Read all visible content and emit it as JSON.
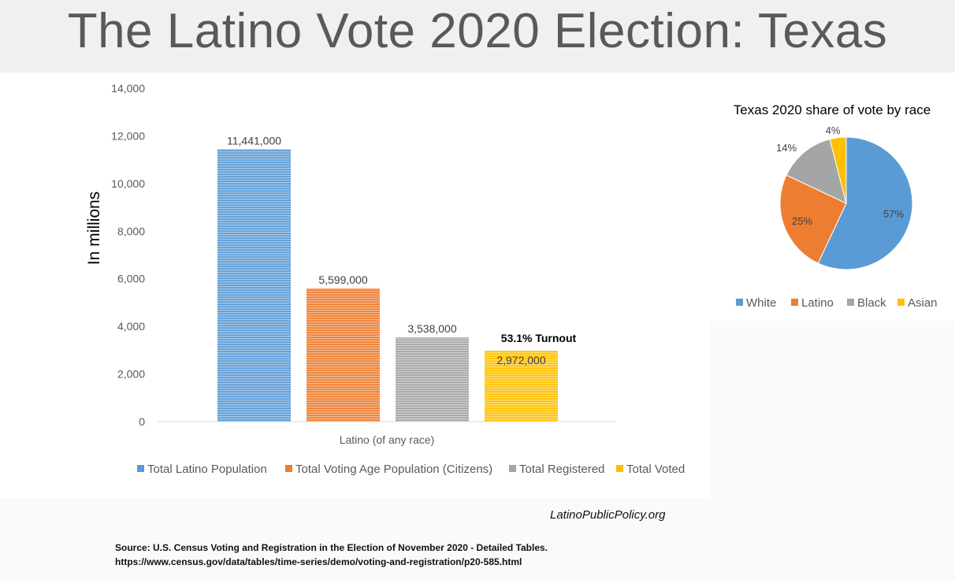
{
  "page_title": "The Latino Vote 2020 Election: Texas",
  "chart_data": [
    {
      "type": "bar",
      "title": "",
      "ylabel": "In millions",
      "xlabel": "",
      "categories": [
        "Latino (of any race)"
      ],
      "ylim": [
        0,
        14000
      ],
      "yticks": [
        0,
        2000,
        4000,
        6000,
        8000,
        10000,
        12000,
        14000
      ],
      "ytick_labels": [
        "0",
        "2,000",
        "4,000",
        "6,000",
        "8,000",
        "10,000",
        "12,000",
        "14,000"
      ],
      "grid": false,
      "legend_position": "bottom",
      "series": [
        {
          "name": "Total Latino Population",
          "values": [
            11441
          ],
          "label": "11,441,000",
          "color": "#5b9bd5"
        },
        {
          "name": "Total Voting Age Population (Citizens)",
          "values": [
            5599
          ],
          "label": "5,599,000",
          "color": "#ed7d31"
        },
        {
          "name": "Total Registered",
          "values": [
            3538
          ],
          "label": "3,538,000",
          "color": "#a5a5a5"
        },
        {
          "name": "Total Voted",
          "values": [
            2972
          ],
          "label": "2,972,000",
          "color": "#ffc000"
        }
      ],
      "annotations": [
        {
          "text": "53.1% Turnout",
          "series": "Total Voted"
        }
      ]
    },
    {
      "type": "pie",
      "title": "Texas 2020 share of vote by race",
      "legend_position": "bottom",
      "slices": [
        {
          "name": "White",
          "value": 57,
          "label": "57%",
          "color": "#5b9bd5"
        },
        {
          "name": "Latino",
          "value": 25,
          "label": "25%",
          "color": "#ed7d31"
        },
        {
          "name": "Black",
          "value": 14,
          "label": "14%",
          "color": "#a5a5a5"
        },
        {
          "name": "Asian",
          "value": 4,
          "label": "4%",
          "color": "#ffc000"
        }
      ]
    }
  ],
  "footer": {
    "website": "LatinoPublicPolicy.org",
    "source_line1": "Source: U.S. Census  Voting and Registration in the Election of November 2020 - Detailed Tables.",
    "source_line2": "https://www.census.gov/data/tables/time-series/demo/voting-and-registration/p20-585.html"
  }
}
